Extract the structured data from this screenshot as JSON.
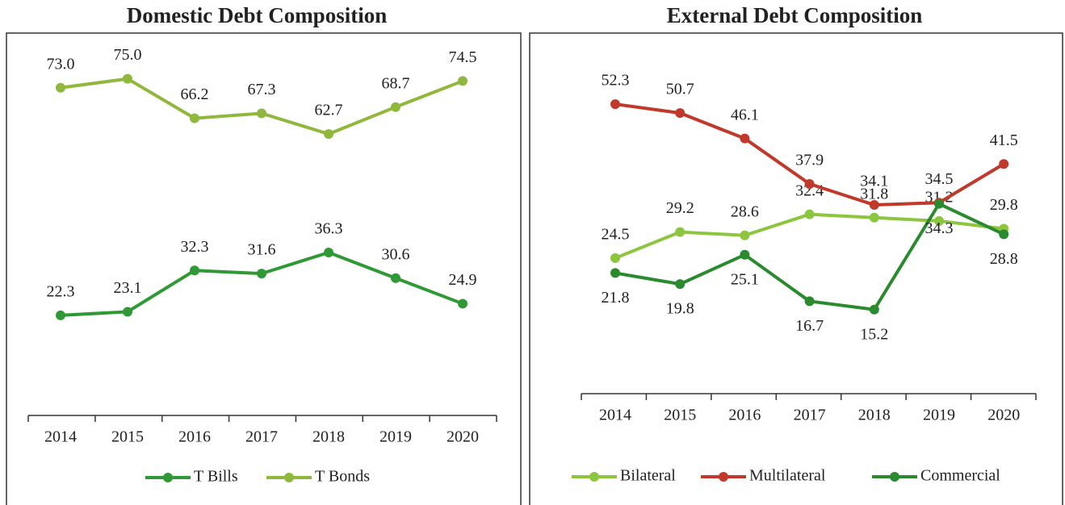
{
  "chart_data": [
    {
      "type": "line",
      "title": "Domestic Debt Composition",
      "categories": [
        "2014",
        "2015",
        "2016",
        "2017",
        "2018",
        "2019",
        "2020"
      ],
      "ylim": [
        0,
        85
      ],
      "legend": "bottom",
      "series": [
        {
          "name": "T Bills",
          "color": "#2f9a35",
          "values": [
            22.3,
            23.1,
            32.3,
            31.6,
            36.3,
            30.6,
            24.9
          ],
          "value_labels": [
            "22.3",
            "23.1",
            "32.3",
            "31.6",
            "36.3",
            "30.6",
            "24.9"
          ]
        },
        {
          "name": "T Bonds",
          "color": "#8fb83c",
          "values": [
            73.0,
            75.0,
            66.2,
            67.3,
            62.7,
            68.7,
            74.5
          ],
          "value_labels": [
            "73.0",
            "75.0",
            "66.2",
            "67.3",
            "62.7",
            "68.7",
            "74.5"
          ]
        }
      ]
    },
    {
      "type": "line",
      "title": "External Debt Composition",
      "categories": [
        "2014",
        "2015",
        "2016",
        "2017",
        "2018",
        "2019",
        "2020"
      ],
      "ylim": [
        0,
        65
      ],
      "legend": "bottom",
      "series": [
        {
          "name": "Bilateral",
          "color": "#8cc63f",
          "values": [
            24.5,
            29.2,
            28.6,
            32.4,
            31.8,
            31.2,
            29.8
          ],
          "value_labels": [
            "24.5",
            "29.2",
            "28.6",
            "32.4",
            "31.8",
            "31.2",
            "29.8"
          ]
        },
        {
          "name": "Multilateral",
          "color": "#c0392b",
          "values": [
            52.3,
            50.7,
            46.1,
            37.9,
            34.1,
            34.5,
            41.5
          ],
          "value_labels": [
            "52.3",
            "50.7",
            "46.1",
            "37.9",
            "34.1",
            "34.5",
            "41.5"
          ]
        },
        {
          "name": "Commercial",
          "color": "#2a8a2e",
          "values": [
            21.8,
            19.8,
            25.1,
            16.7,
            15.2,
            34.3,
            28.8
          ],
          "value_labels": [
            "21.8",
            "19.8",
            "25.1",
            "16.7",
            "15.2",
            "34.3",
            "28.8"
          ]
        }
      ]
    }
  ]
}
